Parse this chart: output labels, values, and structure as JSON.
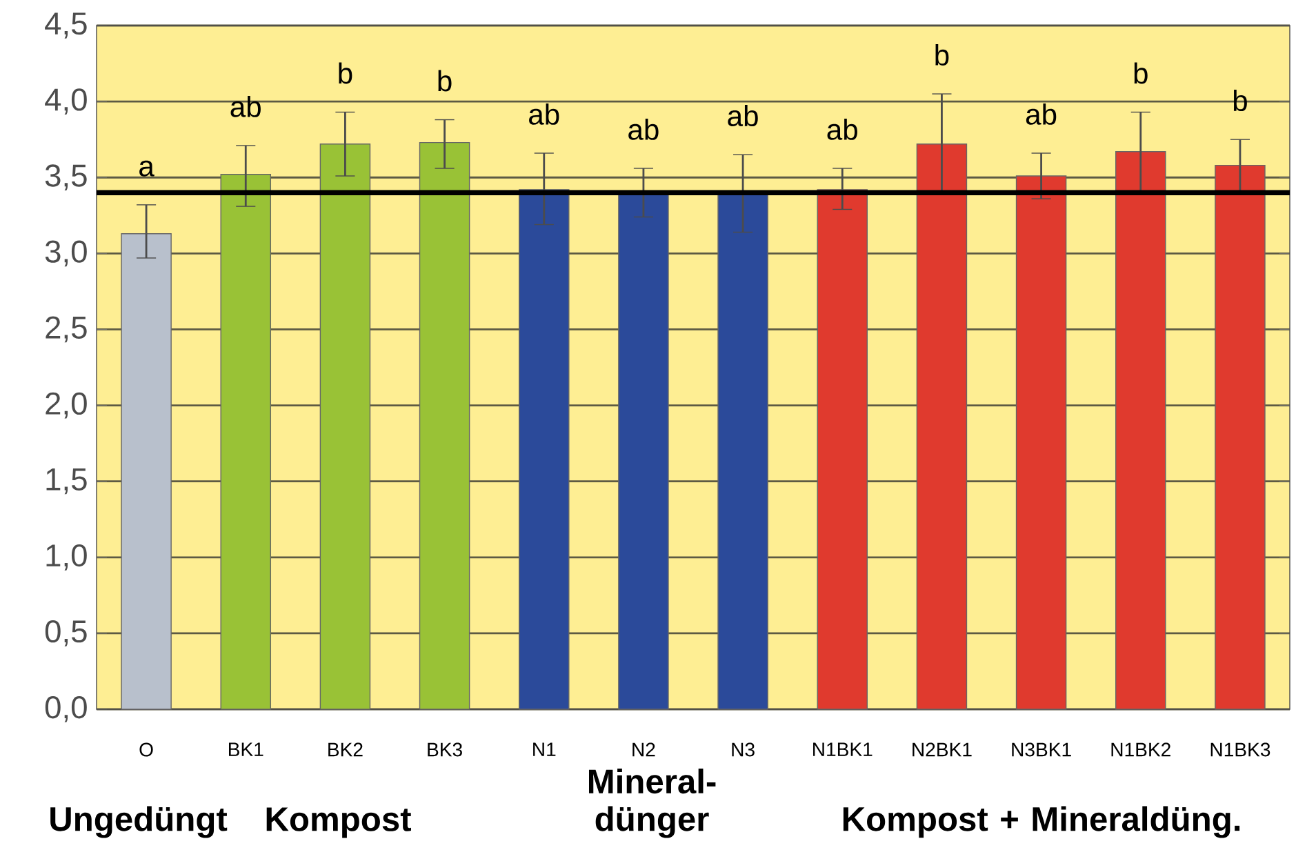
{
  "chart_data": {
    "type": "bar",
    "categories": [
      "O",
      "BK1",
      "BK2",
      "BK3",
      "N1",
      "N2",
      "N3",
      "N1BK1",
      "N2BK1",
      "N3BK1",
      "N1BK2",
      "N1BK3"
    ],
    "values": [
      3.13,
      3.52,
      3.72,
      3.73,
      3.42,
      3.41,
      3.41,
      3.42,
      3.72,
      3.51,
      3.67,
      3.58
    ],
    "errors": [
      [
        2.97,
        3.32
      ],
      [
        3.31,
        3.71
      ],
      [
        3.51,
        3.93
      ],
      [
        3.56,
        3.88
      ],
      [
        3.19,
        3.66
      ],
      [
        3.24,
        3.56
      ],
      [
        3.14,
        3.65
      ],
      [
        3.29,
        3.56
      ],
      [
        3.39,
        4.05
      ],
      [
        3.36,
        3.66
      ],
      [
        3.41,
        3.93
      ],
      [
        3.41,
        3.75
      ]
    ],
    "colors": [
      "#b8c0cc",
      "#99c236",
      "#99c236",
      "#99c236",
      "#2b4a9a",
      "#2b4a9a",
      "#2b4a9a",
      "#e03a2e",
      "#e03a2e",
      "#e03a2e",
      "#e03a2e",
      "#e03a2e"
    ],
    "value_labels": [
      "a",
      "ab",
      "b",
      "b",
      "ab",
      "ab",
      "ab",
      "ab",
      "b",
      "ab",
      "b",
      "b"
    ],
    "ylim": [
      0,
      4.5
    ],
    "yticks": [
      {
        "value": 0,
        "label": "0,0"
      },
      {
        "value": 0.5,
        "label": "0,5"
      },
      {
        "value": 1,
        "label": "1,0"
      },
      {
        "value": 1.5,
        "label": "1,5"
      },
      {
        "value": 2,
        "label": "2,0"
      },
      {
        "value": 2.5,
        "label": "2,5"
      },
      {
        "value": 3,
        "label": "3,0"
      },
      {
        "value": 3.5,
        "label": "3,5"
      },
      {
        "value": 4,
        "label": "4,0"
      },
      {
        "value": 4.5,
        "label": "4,5"
      }
    ],
    "grid": "y",
    "ref_lines": [
      {
        "axis": "y",
        "value": 3.4,
        "color": "#000000"
      }
    ],
    "annotations": [
      "Ungedüngt",
      "Kompost",
      "Mineral- dünger",
      "Kompost + Mineraldüng."
    ]
  }
}
